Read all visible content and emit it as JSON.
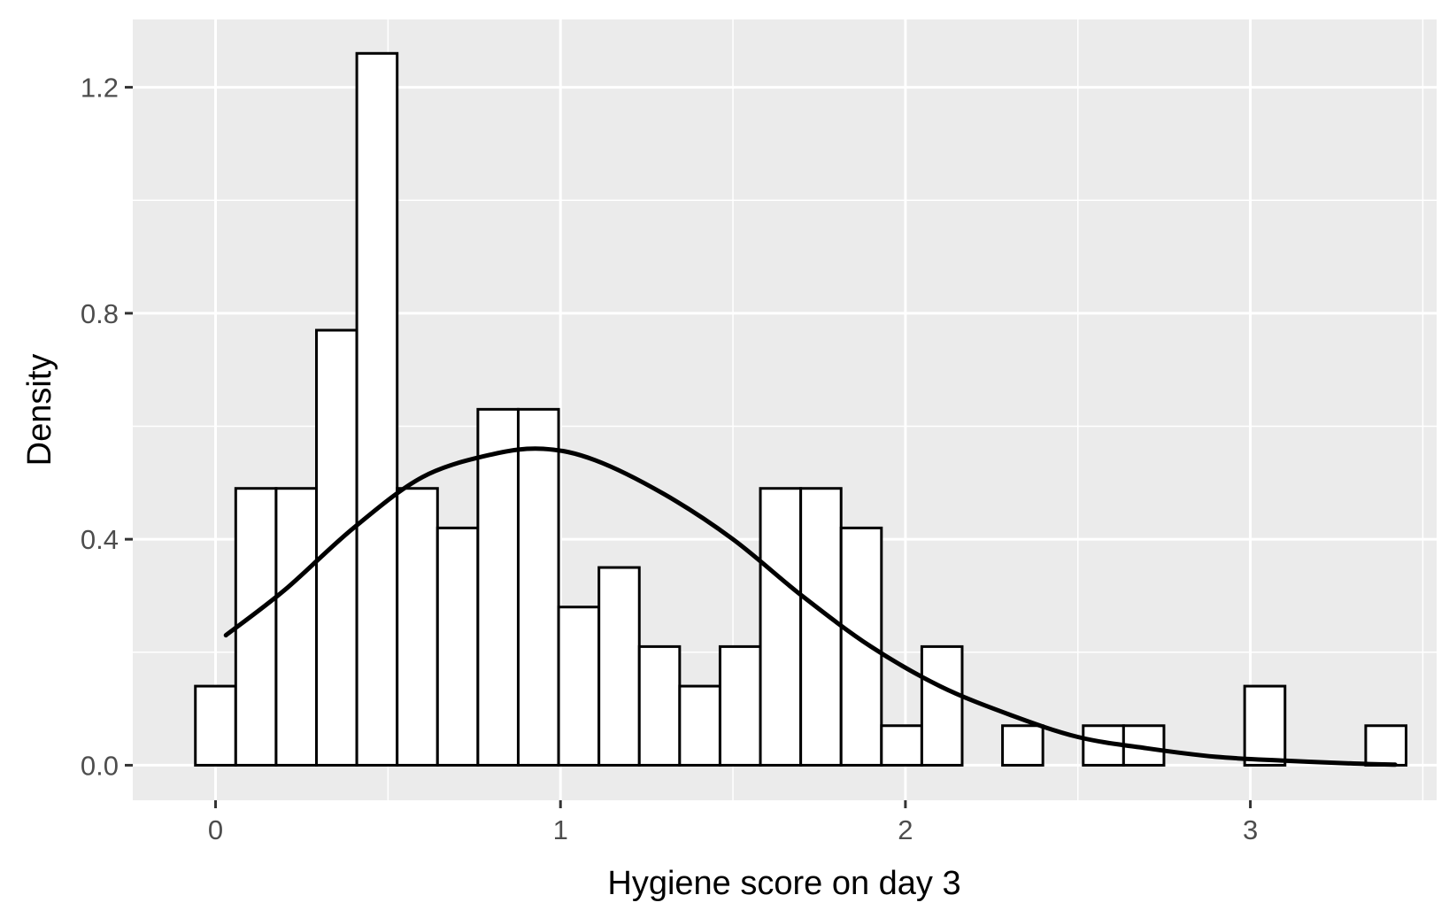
{
  "chart_data": {
    "type": "bar",
    "title": "",
    "xlabel": "Hygiene score on day 3",
    "ylabel": "Density",
    "xlim": [
      -0.24,
      3.54
    ],
    "ylim": [
      -0.062,
      1.32
    ],
    "x_ticks": [
      "0",
      "1",
      "2",
      "3"
    ],
    "y_ticks": [
      "0.0",
      "0.4",
      "0.8",
      "1.2"
    ],
    "grid": true,
    "histogram": {
      "bin_width": 0.117,
      "first_bin_start": -0.0585,
      "values": [
        0.14,
        0.49,
        0.49,
        0.77,
        1.26,
        0.49,
        0.42,
        0.63,
        0.63,
        0.28,
        0.35,
        0.21,
        0.14,
        0.21,
        0.49,
        0.49,
        0.42,
        0.07,
        0.21,
        0,
        0.07,
        0,
        0.07,
        0.07,
        0,
        0,
        0.14,
        0,
        0,
        0.07
      ]
    },
    "density_curve": {
      "x": [
        0.03,
        0.2,
        0.4,
        0.6,
        0.8,
        0.95,
        1.1,
        1.3,
        1.5,
        1.7,
        1.9,
        2.1,
        2.3,
        2.5,
        2.7,
        2.9,
        3.1,
        3.3,
        3.42
      ],
      "y": [
        0.23,
        0.31,
        0.42,
        0.51,
        0.55,
        0.56,
        0.54,
        0.48,
        0.4,
        0.3,
        0.21,
        0.14,
        0.09,
        0.05,
        0.03,
        0.015,
        0.008,
        0.003,
        0.001
      ]
    }
  }
}
